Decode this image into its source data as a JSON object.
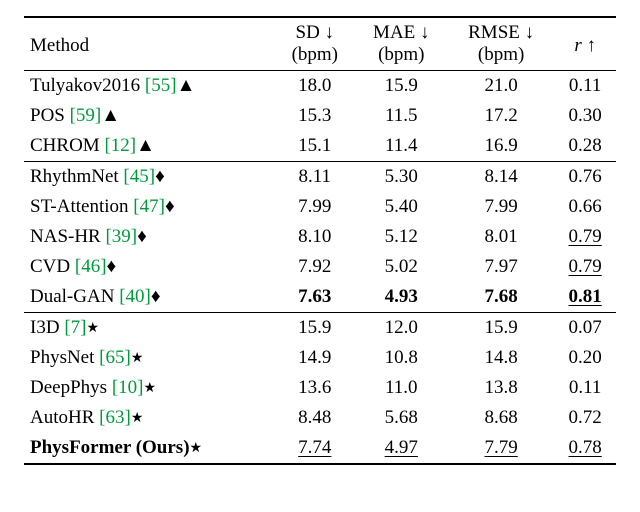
{
  "header": {
    "method": "Method",
    "sd1": "SD ↓",
    "sd2": "(bpm)",
    "mae1": "MAE ↓",
    "mae2": "(bpm)",
    "rmse1": "RMSE ↓",
    "rmse2": "(bpm)",
    "r": "r ↑"
  },
  "symbols": {
    "tri": "▲",
    "dia": "♦",
    "star": "★"
  },
  "groups": [
    {
      "rows": [
        {
          "name": "Tulyakov2016 ",
          "cite": "[55]",
          "sym": "tri",
          "sd": "18.0",
          "mae": "15.9",
          "rmse": "21.0",
          "r": "0.11"
        },
        {
          "name": "POS ",
          "cite": "[59]",
          "sym": "tri",
          "sd": "15.3",
          "mae": "11.5",
          "rmse": "17.2",
          "r": "0.30"
        },
        {
          "name": "CHROM ",
          "cite": "[12]",
          "sym": "tri",
          "sd": "15.1",
          "mae": "11.4",
          "rmse": "16.9",
          "r": "0.28"
        }
      ]
    },
    {
      "rows": [
        {
          "name": "RhythmNet ",
          "cite": "[45]",
          "sym": "dia",
          "sd": "8.11",
          "mae": "5.30",
          "rmse": "8.14",
          "r": "0.76"
        },
        {
          "name": "ST-Attention ",
          "cite": "[47]",
          "sym": "dia",
          "sd": "7.99",
          "mae": "5.40",
          "rmse": "7.99",
          "r": "0.66"
        },
        {
          "name": "NAS-HR ",
          "cite": "[39]",
          "sym": "dia",
          "sd": "8.10",
          "mae": "5.12",
          "rmse": "8.01",
          "r": "0.79",
          "r_ul": true
        },
        {
          "name": "CVD ",
          "cite": "[46]",
          "sym": "dia",
          "sd": "7.92",
          "mae": "5.02",
          "rmse": "7.97",
          "r": "0.79",
          "r_ul": true
        },
        {
          "name": "Dual-GAN ",
          "cite": "[40]",
          "sym": "dia",
          "sd": "7.63",
          "mae": "4.93",
          "rmse": "7.68",
          "r": "0.81",
          "row_bold": true,
          "r_ul": true
        }
      ]
    },
    {
      "rows": [
        {
          "name": "I3D ",
          "cite": "[7]",
          "sym": "star",
          "sd": "15.9",
          "mae": "12.0",
          "rmse": "15.9",
          "r": "0.07"
        },
        {
          "name": "PhysNet ",
          "cite": "[65]",
          "sym": "star",
          "sd": "14.9",
          "mae": "10.8",
          "rmse": "14.8",
          "r": "0.20"
        },
        {
          "name": "DeepPhys ",
          "cite": "[10]",
          "sym": "star",
          "sd": "13.6",
          "mae": "11.0",
          "rmse": "13.8",
          "r": "0.11"
        },
        {
          "name": "AutoHR ",
          "cite": "[63]",
          "sym": "star",
          "sd": "8.48",
          "mae": "5.68",
          "rmse": "8.68",
          "r": "0.72"
        },
        {
          "name": "PhysFormer (Ours)",
          "name_bold": true,
          "cite": "",
          "sym": "star",
          "sd": "7.74",
          "mae": "4.97",
          "rmse": "7.79",
          "r": "0.78",
          "ul": true
        }
      ]
    }
  ],
  "colors": {
    "cite": "#009a3d"
  }
}
